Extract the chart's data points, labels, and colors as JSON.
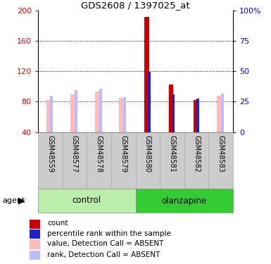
{
  "title": "GDS2608 / 1397025_at",
  "samples": [
    "GSM48559",
    "GSM48577",
    "GSM48578",
    "GSM48579",
    "GSM48580",
    "GSM48581",
    "GSM48582",
    "GSM48583"
  ],
  "value_absent": [
    82,
    90,
    93,
    85,
    null,
    100,
    null,
    88
  ],
  "rank_absent": [
    88,
    95,
    97,
    86,
    null,
    null,
    null,
    91
  ],
  "count_val": [
    null,
    null,
    null,
    null,
    192,
    103,
    82,
    null
  ],
  "percentile_val": [
    null,
    null,
    null,
    null,
    119,
    90,
    84,
    null
  ],
  "ylim_lo": 40,
  "ylim_hi": 200,
  "yticks_left": [
    40,
    80,
    120,
    160,
    200
  ],
  "yticks_right": [
    0,
    25,
    50,
    75,
    100
  ],
  "color_count": "#cc0000",
  "color_percentile": "#2222cc",
  "color_value_absent": "#ffbbbb",
  "color_rank_absent": "#bbbbff",
  "group_light": "#bbeeaa",
  "group_dark": "#33cc33",
  "legend_labels": [
    "count",
    "percentile rank within the sample",
    "value, Detection Call = ABSENT",
    "rank, Detection Call = ABSENT"
  ],
  "legend_colors": [
    "#cc0000",
    "#2222cc",
    "#ffbbbb",
    "#bbbbff"
  ]
}
